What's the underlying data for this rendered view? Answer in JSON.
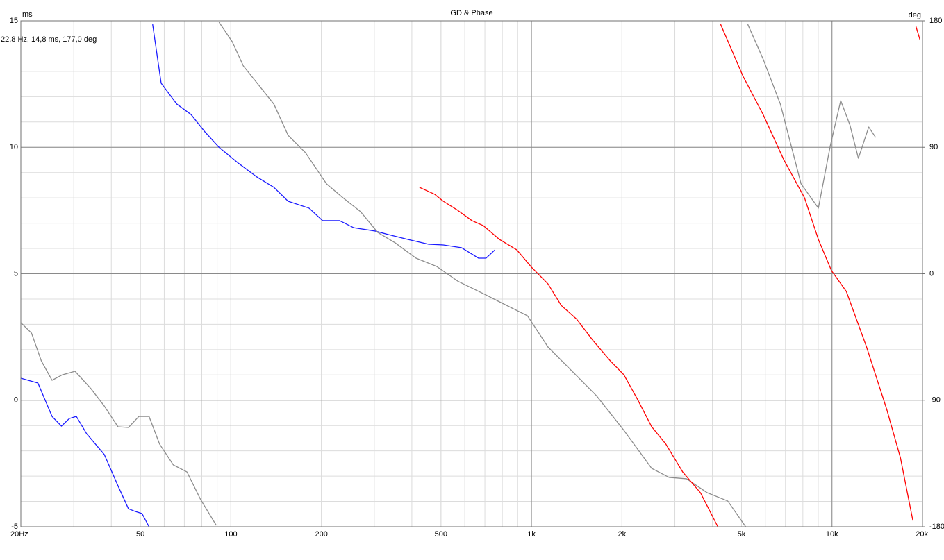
{
  "chart_data": {
    "type": "line",
    "title": "GD & Phase",
    "y_label": "ms",
    "y2_label": "deg",
    "annotation": "22,8 Hz, 14,8 ms, 177,0 deg",
    "log_x": true,
    "grid": true,
    "xlim": [
      20,
      20000
    ],
    "xticks": [
      {
        "value": 20,
        "label": "20Hz"
      },
      50,
      100,
      200,
      500,
      {
        "value": 1000,
        "label": "1k"
      },
      {
        "value": 2000,
        "label": "2k"
      },
      {
        "value": 5000,
        "label": "5k"
      },
      {
        "value": 10000,
        "label": "10k"
      },
      {
        "value": 20000,
        "label": "20k"
      }
    ],
    "ylim": [
      -5,
      15
    ],
    "yticks": [
      -5,
      0,
      5,
      10,
      15
    ],
    "y2lim": [
      -180,
      180
    ],
    "y2ticks": [
      -180,
      -90,
      0,
      90,
      180
    ],
    "series": [
      {
        "color": "#1a1aff",
        "axis": "y2",
        "x": [
          20,
          22.8,
          25.4,
          27.3,
          29,
          30.6,
          33.1,
          37.9,
          42.1,
          45.6,
          48,
          50.6,
          53.4,
          54,
          54.9,
          58.6,
          66.1,
          73.7,
          82,
          91.3,
          106,
          122,
          139,
          155,
          182,
          202,
          230,
          256,
          302,
          334,
          389,
          455,
          509,
          586,
          667,
          706,
          756
        ],
        "values": [
          -74.3,
          -77.8,
          -101.5,
          -108.4,
          -103,
          -101.5,
          -113.8,
          -128.6,
          -150.9,
          -167.2,
          -169.1,
          -170.6,
          -180,
          null,
          177.5,
          135.6,
          120.7,
          113.3,
          100.9,
          90,
          78.6,
          68.9,
          61.5,
          51.6,
          46.7,
          37.8,
          37.8,
          32.8,
          30.4,
          27.9,
          24.4,
          21,
          20.5,
          18.5,
          11.1,
          11.1,
          17
        ]
      },
      {
        "color": "#8c8c8c",
        "axis": "y2",
        "x": [
          20,
          21.7,
          23.4,
          25.4,
          27.5,
          30.3,
          34.2,
          37.9,
          42.1,
          45.6,
          49.4,
          53.4,
          57.9,
          64.3,
          71.4,
          79.3,
          89.4,
          90,
          91.3,
          101,
          110,
          125,
          139,
          155,
          177,
          208,
          236,
          270,
          308,
          352,
          413,
          484,
          568,
          706,
          783,
          970,
          1135,
          1330,
          1644,
          2030,
          2513,
          2870,
          3282,
          3843,
          4498,
          5162,
          5200,
          5245,
          5900,
          6734,
          7890,
          9010,
          9870,
          10690,
          11470,
          12240,
          13250,
          13970
        ],
        "values": [
          -34.8,
          -42.2,
          -62,
          -75.8,
          -71.9,
          -69.4,
          -81.7,
          -94.1,
          -108.9,
          -109.4,
          -101.5,
          -101.5,
          -121.2,
          -136,
          -141,
          -160.7,
          -179,
          null,
          179,
          165.2,
          147.9,
          133.1,
          120.7,
          98.5,
          86.2,
          64,
          54.1,
          44.2,
          29.4,
          22,
          11.1,
          5.2,
          -5.2,
          -15.1,
          -20,
          -29.9,
          -52.1,
          -66.9,
          -86.7,
          -111.4,
          -138.5,
          -144.9,
          -145.9,
          -155.8,
          -161.7,
          -180,
          null,
          177.5,
          152.8,
          120.7,
          64,
          46.7,
          91.1,
          123.2,
          105.9,
          82.2,
          104.4,
          97
        ]
      },
      {
        "color": "#ff0000",
        "axis": "y2",
        "x": [
          424,
          477,
          509,
          568,
          634,
          691,
          783,
          894,
          1000,
          1135,
          1256,
          1414,
          1598,
          1830,
          2030,
          2250,
          2513,
          2800,
          3185,
          3650,
          4170,
          4200,
          4260,
          5060,
          5900,
          6910,
          8100,
          9010,
          9960,
          11160,
          13030,
          15210,
          16900,
          18580,
          18800,
          18990,
          19640
        ],
        "values": [
          61.5,
          56.5,
          51.6,
          45.2,
          37.8,
          34.3,
          24.4,
          17,
          4.7,
          -7.2,
          -22.5,
          -32.3,
          -47.2,
          -62,
          -71.9,
          -89.1,
          -108.9,
          -121.2,
          -141,
          -155.8,
          -180,
          null,
          177.5,
          140.5,
          113.3,
          81.2,
          54.1,
          24.4,
          2.2,
          -12.6,
          -52.1,
          -96.5,
          -131.1,
          -175.6,
          null,
          176.5,
          166.2
        ]
      }
    ]
  }
}
